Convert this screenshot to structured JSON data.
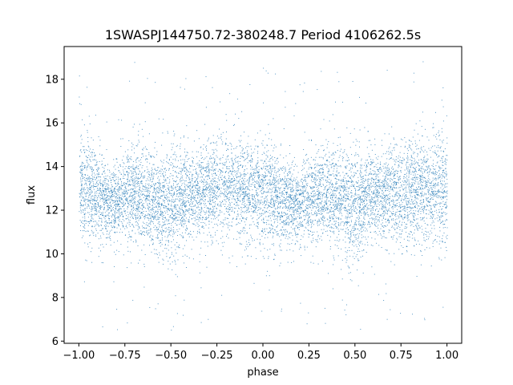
{
  "chart_data": {
    "type": "scatter",
    "title": "1SWASPJ144750.72-380248.7 Period 4106262.5s",
    "xlabel": "phase",
    "ylabel": "flux",
    "xlim": [
      -1.08,
      1.08
    ],
    "ylim": [
      5.9,
      19.5
    ],
    "xticks": [
      -1.0,
      -0.75,
      -0.5,
      -0.25,
      0.0,
      0.25,
      0.5,
      0.75,
      1.0
    ],
    "xtick_labels": [
      "−1.00",
      "−0.75",
      "−0.50",
      "−0.25",
      "0.00",
      "0.25",
      "0.50",
      "0.75",
      "1.00"
    ],
    "yticks": [
      6,
      8,
      10,
      12,
      14,
      16,
      18
    ],
    "ytick_labels": [
      "6",
      "8",
      "10",
      "12",
      "14",
      "16",
      "18"
    ],
    "grid": false,
    "legend": "none",
    "point_color": "#1f77b4",
    "series": [
      {
        "description_values": "dense scatter of phase-folded flux; band centered near 12.5-13 flux spanning roughly 10.5-15, with sparse outliers from ~6.5 to ~19",
        "x": [
          -1.0,
          -0.95,
          -0.9,
          -0.85,
          -0.8,
          -0.75,
          -0.7,
          -0.65,
          -0.6,
          -0.55,
          -0.5,
          -0.45,
          -0.4,
          -0.35,
          -0.3,
          -0.25,
          -0.2,
          -0.15,
          -0.1,
          -0.05,
          0.0,
          0.05,
          0.1,
          0.15,
          0.2,
          0.25,
          0.3,
          0.35,
          0.4,
          0.45,
          0.5,
          0.55,
          0.6,
          0.65,
          0.7,
          0.75,
          0.8,
          0.85,
          0.9,
          0.95,
          1.0
        ],
        "y": [
          12.8,
          13.0,
          12.6,
          12.5,
          12.4,
          12.6,
          12.9,
          12.7,
          12.5,
          12.3,
          12.2,
          12.4,
          12.6,
          12.8,
          13.0,
          13.1,
          13.2,
          13.0,
          12.9,
          12.8,
          12.9,
          12.7,
          12.5,
          12.4,
          12.3,
          12.5,
          12.7,
          12.8,
          12.6,
          12.3,
          12.2,
          12.4,
          12.6,
          12.8,
          12.9,
          12.7,
          12.8,
          13.0,
          12.9,
          13.1,
          12.8
        ],
        "spread": [
          1.1,
          1.2,
          1.0,
          0.9,
          0.9,
          1.0,
          1.1,
          1.1,
          1.0,
          1.3,
          1.4,
          1.1,
          1.0,
          1.0,
          1.1,
          1.2,
          1.2,
          1.1,
          1.1,
          1.1,
          1.2,
          1.1,
          1.0,
          0.9,
          0.9,
          1.0,
          1.0,
          1.1,
          1.0,
          1.2,
          1.4,
          1.1,
          1.0,
          1.0,
          1.1,
          1.1,
          1.2,
          1.2,
          1.1,
          1.3,
          1.2
        ]
      }
    ]
  }
}
